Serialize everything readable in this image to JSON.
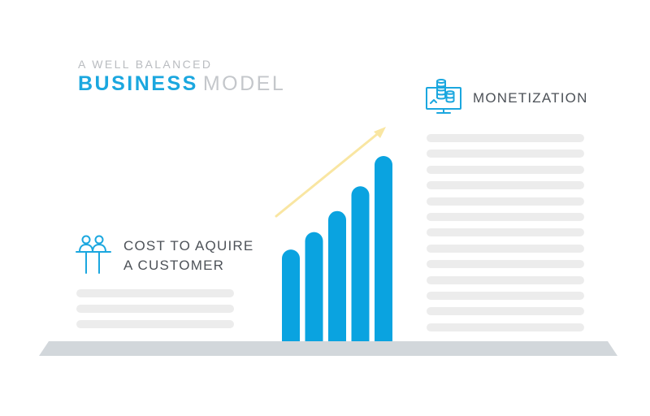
{
  "heading": {
    "kicker": "A WELL BALANCED",
    "title_strong": "BUSINESS",
    "title_light": "MODEL"
  },
  "left_panel": {
    "icon": "people-at-desk-icon",
    "label_line1": "COST TO AQUIRE",
    "label_line2": "A CUSTOMER",
    "placeholder_lines": 3
  },
  "right_panel": {
    "icon": "monitor-coins-icon",
    "label": "MONETIZATION",
    "placeholder_lines": 13
  },
  "chart_data": {
    "type": "bar",
    "categories": [
      "",
      "",
      "",
      "",
      ""
    ],
    "values": [
      1,
      1.19,
      1.42,
      1.69,
      2.02
    ],
    "trend_arrow": "increasing",
    "colors": {
      "bars": "#0aa3e0",
      "arrow": "#f9e6a2"
    }
  },
  "colors": {
    "accent": "#1ba7df",
    "muted_text": "#c4c7cb",
    "label_text": "#4d5258",
    "placeholder": "#ececec",
    "ground": "#d2d7db"
  }
}
